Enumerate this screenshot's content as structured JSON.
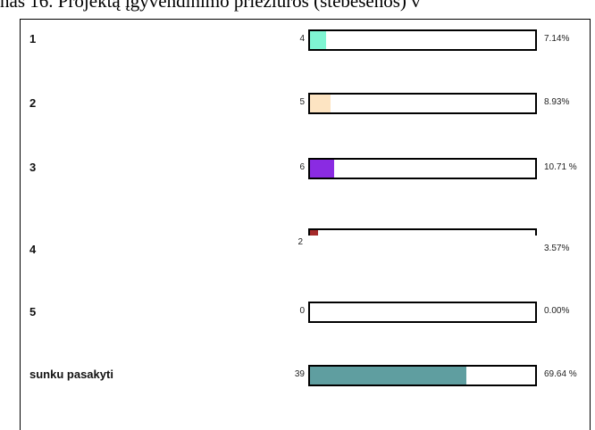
{
  "chart_data": {
    "type": "bar",
    "orientation": "horizontal",
    "title": "nas 16. Projektą įgyvendinimo priežiūros (stebėsenos) v",
    "categories": [
      "1",
      "2",
      "3",
      "4",
      "5",
      "sunku pasakyti"
    ],
    "counts": [
      4,
      5,
      6,
      2,
      0,
      39
    ],
    "values": [
      7.14,
      8.93,
      10.71,
      3.57,
      0,
      69.64
    ],
    "value_labels": [
      "7.14%",
      "8.93%",
      "10.71 %",
      "3.57%",
      "0.00%",
      "69.64 %"
    ],
    "colors": [
      "#7ff5d2",
      "#fde4c2",
      "#8a2be2",
      "#a52a2a",
      "#ffffff",
      "#5f9ea0"
    ],
    "xlim": [
      0,
      100
    ]
  }
}
